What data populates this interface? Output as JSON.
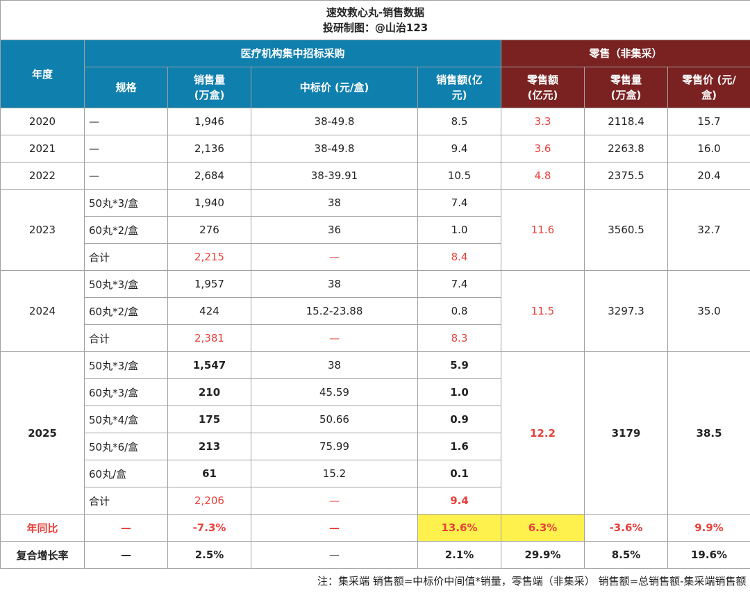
{
  "title": "速效救心丸-销售数据",
  "subtitle": "投研制图：@山治123",
  "header": {
    "year": "年度",
    "group_procurement": "医疗机构集中招标采购",
    "group_retail": "零售（非集采）",
    "columns": [
      "规格",
      "销售量\n(万盒)",
      "中标价 (元/盒)",
      "销售额(亿\n元)",
      "零售额\n(亿元)",
      "零售量\n(万盒)",
      "零售价 (元/\n盒)"
    ]
  },
  "years": [
    {
      "year": "2020",
      "rows": [
        [
          "—",
          "1,946",
          "38-49.8",
          "8.5"
        ]
      ],
      "retail": [
        "3.3",
        "2118.4",
        "15.7"
      ]
    },
    {
      "year": "2021",
      "rows": [
        [
          "—",
          "2,136",
          "38-49.8",
          "9.4"
        ]
      ],
      "retail": [
        "3.6",
        "2263.8",
        "16.0"
      ]
    },
    {
      "year": "2022",
      "rows": [
        [
          "—",
          "2,684",
          "38-39.91",
          "10.5"
        ]
      ],
      "retail": [
        "4.8",
        "2375.5",
        "20.4"
      ]
    },
    {
      "year": "2023",
      "rows": [
        [
          "50丸*3/盒",
          "1,940",
          "38",
          "7.4"
        ],
        [
          "60丸*2/盒",
          "276",
          "36",
          "1.0"
        ],
        [
          "合计",
          "2,215",
          "—",
          "8.4"
        ]
      ],
      "retail": [
        "11.6",
        "3560.5",
        "32.7"
      ]
    },
    {
      "year": "2024",
      "rows": [
        [
          "50丸*3/盒",
          "1,957",
          "38",
          "7.4"
        ],
        [
          "60丸*2/盒",
          "424",
          "15.2-23.88",
          "0.8"
        ],
        [
          "合计",
          "2,381",
          "—",
          "8.3"
        ]
      ],
      "retail": [
        "11.5",
        "3297.3",
        "35.0"
      ]
    },
    {
      "year": "2025",
      "rows": [
        [
          "50丸*3/盒",
          "1,547",
          "38",
          "5.9"
        ],
        [
          "60丸*3/盒",
          "210",
          "45.59",
          "1.0"
        ],
        [
          "50丸*4/盒",
          "175",
          "50.66",
          "0.9"
        ],
        [
          "50丸*6/盒",
          "213",
          "75.99",
          "1.6"
        ],
        [
          "60丸/盒",
          "61",
          "15.2",
          "0.1"
        ],
        [
          "合计",
          "2,206",
          "—",
          "9.4"
        ]
      ],
      "retail": [
        "12.2",
        "3179",
        "38.5"
      ]
    }
  ],
  "yoy": [
    "年同比",
    "—",
    "-7.3%",
    "—",
    "13.6%",
    "6.3%",
    "-3.6%",
    "9.9%"
  ],
  "cagr": [
    "复合增长率",
    "—",
    "2.5%",
    "—",
    "2.1%",
    "29.9%",
    "8.5%",
    "19.6%"
  ],
  "note": "注：集采端 销售额=中标价中间值*销量，零售端（非集采） 销售额=总销售额-集采端销售额"
}
